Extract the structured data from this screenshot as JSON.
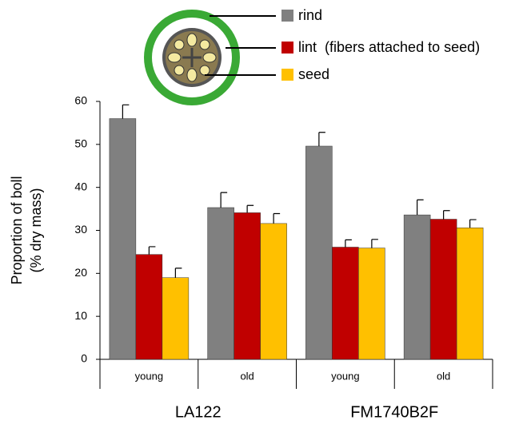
{
  "chart_data": {
    "type": "bar",
    "categories": [
      "young",
      "old",
      "young",
      "old"
    ],
    "groups": [
      {
        "label": "LA122",
        "span": [
          0,
          1
        ]
      },
      {
        "label": "FM1740B2F",
        "span": [
          2,
          3
        ]
      }
    ],
    "ylabel": [
      "Proportion of boll",
      "(% dry mass)"
    ],
    "ylim": [
      0,
      60
    ],
    "yticks": [
      0,
      10,
      20,
      30,
      40,
      50,
      60
    ],
    "grid": false,
    "series": [
      {
        "name": "rind",
        "color": "#808080",
        "values": [
          56,
          35.3,
          49.6,
          33.6
        ],
        "errors": [
          3.2,
          3.5,
          3.2,
          3.5
        ]
      },
      {
        "name": "lint  (fibers attached to seed)",
        "color": "#c00000",
        "values": [
          24.4,
          34.1,
          26.1,
          32.6
        ],
        "errors": [
          1.8,
          1.7,
          1.7,
          2.0
        ]
      },
      {
        "name": "seed",
        "color": "#ffc000",
        "values": [
          19,
          31.6,
          25.9,
          30.6
        ],
        "errors": [
          2.2,
          2.3,
          2.0,
          1.9
        ]
      }
    ]
  }
}
